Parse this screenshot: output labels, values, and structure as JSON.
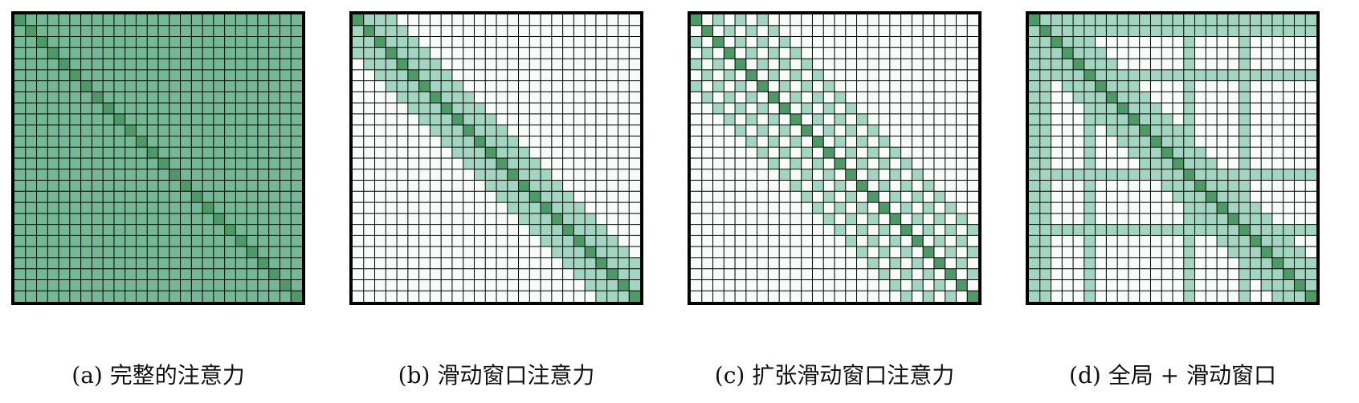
{
  "grid_size": 26,
  "colors": {
    "diagonal": "#4e9a66",
    "full": "#74b895",
    "band": "#a3d6c2",
    "empty": "#f7fbfa",
    "line": "#000000"
  },
  "panels": [
    {
      "id": "a",
      "pattern": "full",
      "caption": "(a)  完整的注意力"
    },
    {
      "id": "b",
      "pattern": "sliding",
      "window": 3,
      "caption": "(b)  滑动窗口注意力"
    },
    {
      "id": "c",
      "pattern": "dilated",
      "dilation": 2,
      "window": 3,
      "caption": "(c)  扩张滑动窗口注意力"
    },
    {
      "id": "d",
      "pattern": "global_sliding",
      "window": 3,
      "global_tokens": [
        0,
        1,
        5,
        14,
        19
      ],
      "caption": "(d)  全局 + 滑动窗口"
    }
  ]
}
